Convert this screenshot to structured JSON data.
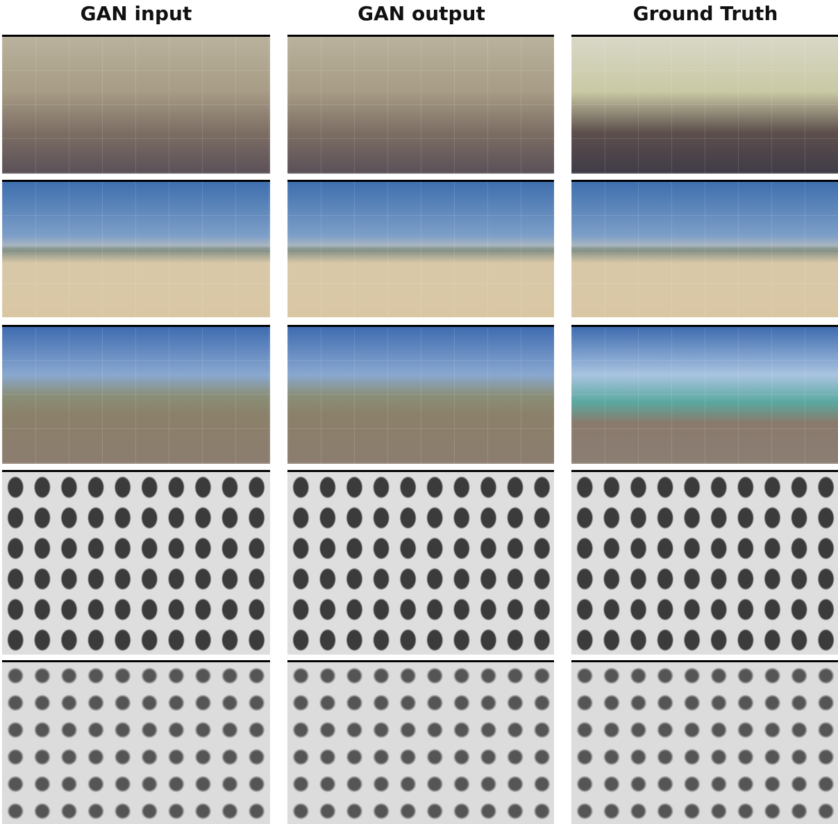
{
  "columns": [
    {
      "header": "GAN input"
    },
    {
      "header": "GAN output"
    },
    {
      "header": "Ground Truth"
    }
  ]
}
